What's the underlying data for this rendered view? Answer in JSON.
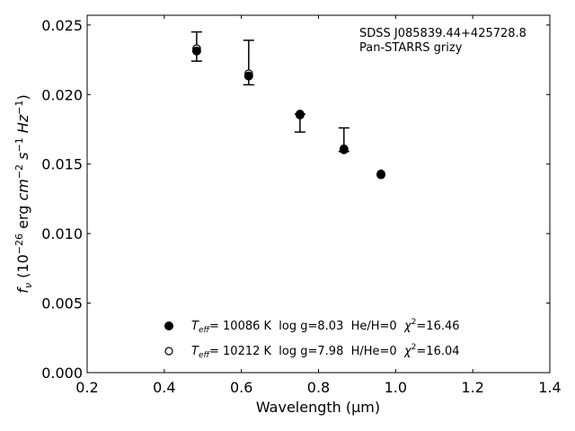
{
  "chart_data": {
    "type": "scatter",
    "title": "",
    "xlabel": "Wavelength (μm)",
    "ylabel": "f_ν (10^-26 erg cm^-2 s^-1 Hz^-1)",
    "xlim": [
      0.2,
      1.4
    ],
    "ylim": [
      0.0,
      0.0257
    ],
    "xticks": [
      0.2,
      0.4,
      0.6,
      0.8,
      1.0,
      1.2,
      1.4
    ],
    "xtick_labels": [
      "0.2",
      "0.4",
      "0.6",
      "0.8",
      "1.0",
      "1.2",
      "1.4"
    ],
    "yticks": [
      0.0,
      0.005,
      0.01,
      0.015,
      0.02,
      0.025
    ],
    "ytick_labels": [
      "0.000",
      "0.005",
      "0.010",
      "0.015",
      "0.020",
      "0.025"
    ],
    "grid": false,
    "annotation": [
      "SDSS J085839.44+425728.8",
      "Pan-STARRS grizy"
    ],
    "observed": {
      "x": [
        0.484,
        0.619,
        0.752,
        0.866
      ],
      "y_low": [
        0.0224,
        0.0207,
        0.0173,
        0.0159
      ],
      "y_high": [
        0.0245,
        0.0239,
        0.0186,
        0.0176
      ]
    },
    "series": [
      {
        "name": "T_eff= 10086 K  log g=8.03  He/H=0  χ²=16.46",
        "marker": "filled",
        "x": [
          0.484,
          0.619,
          0.752,
          0.866,
          0.962
        ],
        "y": [
          0.0232,
          0.0214,
          0.0186,
          0.0161,
          0.0143
        ]
      },
      {
        "name": "T_eff= 10212 K  log g=7.98  H/He=0  χ²=16.04",
        "marker": "open",
        "x": [
          0.484,
          0.619,
          0.752,
          0.866,
          0.962
        ],
        "y": [
          0.0233,
          0.0215,
          0.0186,
          0.0161,
          0.0143
        ]
      }
    ],
    "legend": {
      "placement": "lower-center",
      "entries": [
        {
          "teff_label": "T",
          "teff_sub": "eff",
          "text": "= 10086 K  log g=8.03  He/H=0  ",
          "chi": "χ",
          "chi_sup": "2",
          "chi_val": "=16.46"
        },
        {
          "teff_label": "T",
          "teff_sub": "eff",
          "text": "= 10212 K  log g=7.98  H/He=0  ",
          "chi": "χ",
          "chi_sup": "2",
          "chi_val": "=16.04"
        }
      ]
    },
    "colors": {
      "marker": "#000000",
      "open_fill": "#ffffff",
      "axes": "#000000"
    }
  }
}
